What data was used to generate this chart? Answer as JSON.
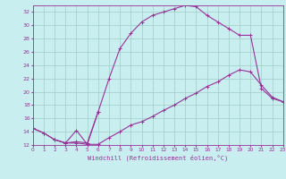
{
  "xlabel": "Windchill (Refroidissement éolien,°C)",
  "bg_color": "#c8eef0",
  "grid_color": "#a0ccc8",
  "line_color": "#993399",
  "xmin": 0,
  "xmax": 23,
  "ymin": 12,
  "ymax": 33,
  "yticks": [
    12,
    14,
    16,
    18,
    20,
    22,
    24,
    26,
    28,
    30,
    32
  ],
  "curve1_x": [
    0,
    1,
    2,
    3,
    4,
    5,
    6,
    7,
    8,
    9,
    10,
    11,
    12,
    13,
    14,
    15,
    16,
    17,
    18,
    19,
    20,
    21,
    22,
    23
  ],
  "curve1_y": [
    14.5,
    13.8,
    12.8,
    12.3,
    12.3,
    12.1,
    12.1,
    13.1,
    14.0,
    15.0,
    15.5,
    16.3,
    17.2,
    18.0,
    19.0,
    19.8,
    20.8,
    21.5,
    22.5,
    23.3,
    23.0,
    21.0,
    19.2,
    18.5
  ],
  "curve2_x": [
    0,
    1,
    2,
    3,
    4,
    5,
    6,
    7,
    8,
    9,
    10,
    11,
    12,
    13,
    14,
    15,
    16,
    17,
    18,
    19,
    20,
    21,
    22,
    23
  ],
  "curve2_y": [
    14.5,
    13.8,
    12.8,
    12.3,
    12.5,
    12.3,
    17.0,
    22.0,
    26.5,
    28.8,
    30.5,
    31.5,
    32.0,
    32.5,
    33.0,
    32.8,
    31.5,
    30.5,
    29.5,
    28.5,
    28.5,
    20.5,
    19.0,
    18.5
  ],
  "curve3_x": [
    2,
    3,
    4,
    5,
    6
  ],
  "curve3_y": [
    12.8,
    12.3,
    14.2,
    12.1,
    17.0
  ]
}
